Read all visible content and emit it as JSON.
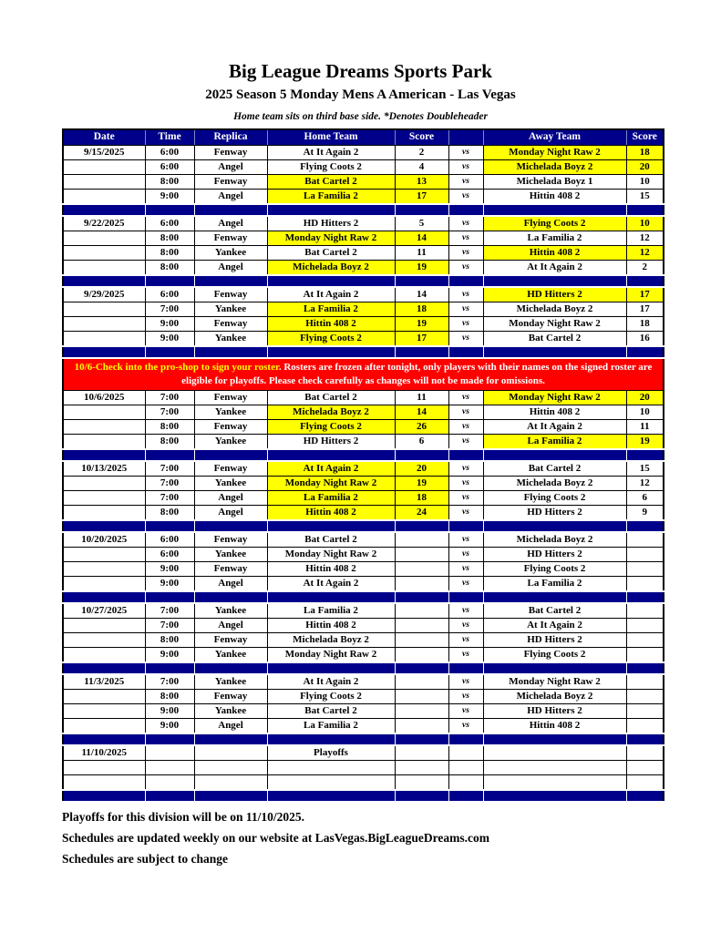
{
  "header": {
    "title": "Big League Dreams Sports Park",
    "subtitle": "2025 Season 5 Monday Mens A American - Las Vegas",
    "note": "Home team sits on third base side.  *Denotes Doubleheader"
  },
  "colors": {
    "navy": "#00008B",
    "yellow": "#FFFF00",
    "red": "#FF0000"
  },
  "table": {
    "columns": [
      "Date",
      "Time",
      "Replica",
      "Home Team",
      "Score",
      "",
      "Away Team",
      "Score"
    ],
    "vs_label": "vs",
    "sections": [
      {
        "type": "week",
        "date": "9/15/2025",
        "rows": [
          {
            "time": "6:00",
            "replica": "Fenway",
            "home": "At It Again 2",
            "home_score": "2",
            "away": "Monday Night Raw 2",
            "away_score": "18",
            "winner": "away"
          },
          {
            "time": "6:00",
            "replica": "Angel",
            "home": "Flying Coots 2",
            "home_score": "4",
            "away": "Michelada Boyz 2",
            "away_score": "20",
            "winner": "away"
          },
          {
            "time": "8:00",
            "replica": "Fenway",
            "home": "Bat Cartel 2",
            "home_score": "13",
            "away": "Michelada Boyz 1",
            "away_score": "10",
            "winner": "home"
          },
          {
            "time": "9:00",
            "replica": "Angel",
            "home": "La Familia 2",
            "home_score": "17",
            "away": "Hittin 408 2",
            "away_score": "15",
            "winner": "home"
          }
        ]
      },
      {
        "type": "week",
        "date": "9/22/2025",
        "rows": [
          {
            "time": "6:00",
            "replica": "Angel",
            "home": "HD Hitters 2",
            "home_score": "5",
            "away": "Flying Coots 2",
            "away_score": "10",
            "winner": "away"
          },
          {
            "time": "8:00",
            "replica": "Fenway",
            "home": "Monday Night Raw 2",
            "home_score": "14",
            "away": "La Familia 2",
            "away_score": "12",
            "winner": "home"
          },
          {
            "time": "8:00",
            "replica": "Yankee",
            "home": "Bat Cartel 2",
            "home_score": "11",
            "away": "Hittin 408 2",
            "away_score": "12",
            "winner": "away"
          },
          {
            "time": "8:00",
            "replica": "Angel",
            "home": "Michelada Boyz 2",
            "home_score": "19",
            "away": "At It Again 2",
            "away_score": "2",
            "winner": "home"
          }
        ]
      },
      {
        "type": "week",
        "date": "9/29/2025",
        "rows": [
          {
            "time": "6:00",
            "replica": "Fenway",
            "home": "At It Again 2",
            "home_score": "14",
            "away": "HD Hitters 2",
            "away_score": "17",
            "winner": "away"
          },
          {
            "time": "7:00",
            "replica": "Yankee",
            "home": "La Familia 2",
            "home_score": "18",
            "away": "Michelada Boyz 2",
            "away_score": "17",
            "winner": "home"
          },
          {
            "time": "9:00",
            "replica": "Fenway",
            "home": "Hittin 408 2",
            "home_score": "19",
            "away": "Monday Night Raw 2",
            "away_score": "18",
            "winner": "home"
          },
          {
            "time": "9:00",
            "replica": "Yankee",
            "home": "Flying Coots 2",
            "home_score": "17",
            "away": "Bat Cartel 2",
            "away_score": "16",
            "winner": "home"
          }
        ]
      },
      {
        "type": "banner",
        "highlight": "10/6-Check into the pro-shop to sign your roster",
        "rest": ". Rosters are frozen after tonight, only players with their names on the signed roster are eligible for playoffs. Please check carefully as changes will not be made for omissions."
      },
      {
        "type": "week",
        "date": "10/6/2025",
        "rows": [
          {
            "time": "7:00",
            "replica": "Fenway",
            "home": "Bat Cartel 2",
            "home_score": "11",
            "away": "Monday Night Raw 2",
            "away_score": "20",
            "winner": "away"
          },
          {
            "time": "7:00",
            "replica": "Yankee",
            "home": "Michelada Boyz 2",
            "home_score": "14",
            "away": "Hittin 408 2",
            "away_score": "10",
            "winner": "home"
          },
          {
            "time": "8:00",
            "replica": "Fenway",
            "home": "Flying Coots 2",
            "home_score": "26",
            "away": "At It Again 2",
            "away_score": "11",
            "winner": "home"
          },
          {
            "time": "8:00",
            "replica": "Yankee",
            "home": "HD Hitters 2",
            "home_score": "6",
            "away": "La Familia 2",
            "away_score": "19",
            "winner": "away"
          }
        ]
      },
      {
        "type": "week",
        "date": "10/13/2025",
        "rows": [
          {
            "time": "7:00",
            "replica": "Fenway",
            "home": "At It Again 2",
            "home_score": "20",
            "away": "Bat Cartel 2",
            "away_score": "15",
            "winner": "home"
          },
          {
            "time": "7:00",
            "replica": "Yankee",
            "home": "Monday Night Raw 2",
            "home_score": "19",
            "away": "Michelada Boyz 2",
            "away_score": "12",
            "winner": "home"
          },
          {
            "time": "7:00",
            "replica": "Angel",
            "home": "La Familia 2",
            "home_score": "18",
            "away": "Flying Coots 2",
            "away_score": "6",
            "winner": "home"
          },
          {
            "time": "8:00",
            "replica": "Angel",
            "home": "Hittin 408 2",
            "home_score": "24",
            "away": "HD Hitters 2",
            "away_score": "9",
            "winner": "home"
          }
        ]
      },
      {
        "type": "week",
        "date": "10/20/2025",
        "rows": [
          {
            "time": "6:00",
            "replica": "Fenway",
            "home": "Bat Cartel 2",
            "home_score": "",
            "away": "Michelada Boyz 2",
            "away_score": "",
            "winner": null
          },
          {
            "time": "6:00",
            "replica": "Yankee",
            "home": "Monday Night Raw 2",
            "home_score": "",
            "away": "HD Hitters 2",
            "away_score": "",
            "winner": null
          },
          {
            "time": "9:00",
            "replica": "Fenway",
            "home": "Hittin 408 2",
            "home_score": "",
            "away": "Flying Coots 2",
            "away_score": "",
            "winner": null
          },
          {
            "time": "9:00",
            "replica": "Angel",
            "home": "At It Again 2",
            "home_score": "",
            "away": "La Familia 2",
            "away_score": "",
            "winner": null
          }
        ]
      },
      {
        "type": "week",
        "date": "10/27/2025",
        "rows": [
          {
            "time": "7:00",
            "replica": "Yankee",
            "home": "La Familia 2",
            "home_score": "",
            "away": "Bat Cartel 2",
            "away_score": "",
            "winner": null
          },
          {
            "time": "7:00",
            "replica": "Angel",
            "home": "Hittin 408 2",
            "home_score": "",
            "away": "At It Again 2",
            "away_score": "",
            "winner": null
          },
          {
            "time": "8:00",
            "replica": "Fenway",
            "home": "Michelada Boyz 2",
            "home_score": "",
            "away": "HD Hitters 2",
            "away_score": "",
            "winner": null
          },
          {
            "time": "9:00",
            "replica": "Yankee",
            "home": "Monday Night Raw 2",
            "home_score": "",
            "away": "Flying Coots 2",
            "away_score": "",
            "winner": null
          }
        ]
      },
      {
        "type": "week",
        "date": "11/3/2025",
        "rows": [
          {
            "time": "7:00",
            "replica": "Yankee",
            "home": "At It Again 2",
            "home_score": "",
            "away": "Monday Night Raw 2",
            "away_score": "",
            "winner": null
          },
          {
            "time": "8:00",
            "replica": "Fenway",
            "home": "Flying Coots 2",
            "home_score": "",
            "away": "Michelada Boyz 2",
            "away_score": "",
            "winner": null
          },
          {
            "time": "9:00",
            "replica": "Yankee",
            "home": "Bat Cartel 2",
            "home_score": "",
            "away": "HD Hitters 2",
            "away_score": "",
            "winner": null
          },
          {
            "time": "9:00",
            "replica": "Angel",
            "home": "La Familia 2",
            "home_score": "",
            "away": "Hittin 408 2",
            "away_score": "",
            "winner": null
          }
        ]
      },
      {
        "type": "playoffs",
        "date": "11/10/2025",
        "label": "Playoffs",
        "empty_rows": 2
      }
    ]
  },
  "footer": {
    "lines": [
      "Playoffs for this division will be on 11/10/2025.",
      "Schedules are updated weekly on our website at LasVegas.BigLeagueDreams.com",
      "Schedules are subject to change"
    ]
  }
}
